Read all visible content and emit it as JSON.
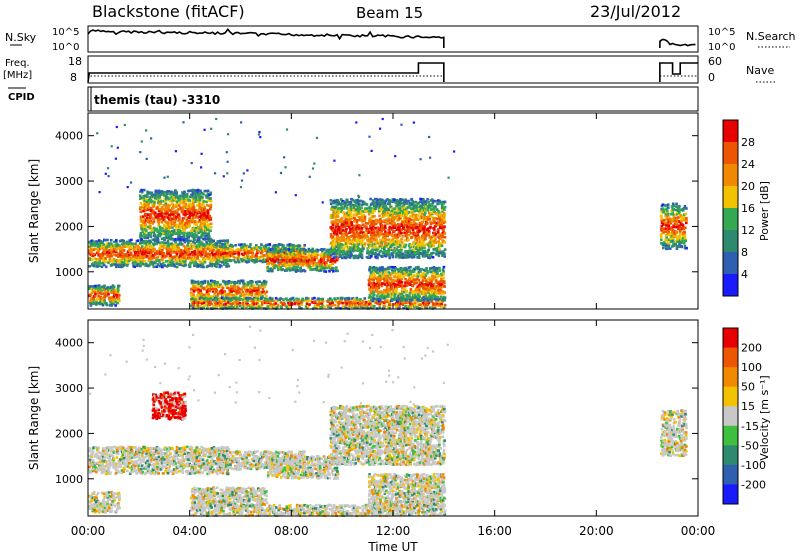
{
  "header": {
    "station": "Blackstone (fitACF)",
    "beam": "Beam 15",
    "date": "23/Jul/2012"
  },
  "status_panels": {
    "left_labels": [
      "N.Sky",
      "Freq.",
      "[MHz]",
      "CPID"
    ],
    "right_labels": [
      "N.Search",
      "Nave"
    ],
    "noise_axis_ticks": [
      "10^5",
      "10^0"
    ],
    "freq_axis_ticks": [
      "18",
      "8"
    ],
    "nave_axis_ticks": [
      "60",
      "0"
    ],
    "cpid_text": "themis (tau) -3310"
  },
  "colors": {
    "power_scale": [
      "#1a1aff",
      "#2f5fb0",
      "#2e8a6e",
      "#35a852",
      "#f2c200",
      "#f08800",
      "#ee5500",
      "#e80000"
    ],
    "velocity_scale": [
      "#1a1aff",
      "#2f5fb0",
      "#2e8a6e",
      "#3fbf3f",
      "#c8c8c8",
      "#f2c200",
      "#f08800",
      "#ee5500",
      "#e80000"
    ]
  },
  "chart_data": [
    {
      "type": "heatmap",
      "name": "power",
      "xlabel": "Time UT",
      "ylabel": "Slant Range [km]",
      "x_range_hours": [
        0,
        24
      ],
      "y_range_km": [
        180,
        4500
      ],
      "y_ticks": [
        "1000",
        "2000",
        "3000",
        "4000"
      ],
      "colorbar_label": "Power [dB]",
      "colorbar_ticks": [
        "4",
        "8",
        "12",
        "16",
        "20",
        "24",
        "28"
      ],
      "clusters": [
        {
          "t0": 0.0,
          "t1": 5.5,
          "r0": 1100,
          "r1": 1700
        },
        {
          "t0": 0.0,
          "t1": 1.2,
          "r0": 250,
          "r1": 700
        },
        {
          "t0": 2.0,
          "t1": 4.8,
          "r0": 1700,
          "r1": 2800
        },
        {
          "t0": 4.0,
          "t1": 7.0,
          "r0": 350,
          "r1": 800
        },
        {
          "t0": 5.0,
          "t1": 8.5,
          "r0": 1200,
          "r1": 1600
        },
        {
          "t0": 7.0,
          "t1": 9.8,
          "r0": 1000,
          "r1": 1500
        },
        {
          "t0": 4.0,
          "t1": 14.0,
          "r0": 180,
          "r1": 420
        },
        {
          "t0": 9.5,
          "t1": 14.0,
          "r0": 1300,
          "r1": 2600
        },
        {
          "t0": 11.0,
          "t1": 14.0,
          "r0": 350,
          "r1": 1100
        },
        {
          "t0": 22.5,
          "t1": 23.5,
          "r0": 1500,
          "r1": 2500
        }
      ]
    },
    {
      "type": "heatmap",
      "name": "velocity",
      "xlabel": "Time UT",
      "ylabel": "Slant Range [km]",
      "x_range_hours": [
        0,
        24
      ],
      "y_range_km": [
        180,
        4500
      ],
      "y_ticks": [
        "1000",
        "2000",
        "3000",
        "4000"
      ],
      "colorbar_label": "Velocity [m s⁻¹]",
      "colorbar_ticks": [
        "200",
        "100",
        "50",
        "15",
        "-15",
        "-50",
        "-100",
        "-200"
      ],
      "x_ticks": [
        "00:00",
        "04:00",
        "08:00",
        "12:00",
        "16:00",
        "20:00",
        "00:00"
      ],
      "clusters": [
        {
          "t0": 0.0,
          "t1": 5.5,
          "r0": 1100,
          "r1": 1700
        },
        {
          "t0": 0.0,
          "t1": 1.2,
          "r0": 250,
          "r1": 700
        },
        {
          "t0": 2.5,
          "t1": 3.8,
          "r0": 2300,
          "r1": 2900
        },
        {
          "t0": 4.0,
          "t1": 7.0,
          "r0": 350,
          "r1": 800
        },
        {
          "t0": 5.0,
          "t1": 8.5,
          "r0": 1200,
          "r1": 1600
        },
        {
          "t0": 7.0,
          "t1": 9.8,
          "r0": 1000,
          "r1": 1500
        },
        {
          "t0": 4.0,
          "t1": 14.0,
          "r0": 180,
          "r1": 420
        },
        {
          "t0": 9.5,
          "t1": 14.0,
          "r0": 1300,
          "r1": 2600
        },
        {
          "t0": 11.0,
          "t1": 14.0,
          "r0": 350,
          "r1": 1100
        },
        {
          "t0": 22.5,
          "t1": 23.5,
          "r0": 1500,
          "r1": 2500
        }
      ]
    }
  ]
}
